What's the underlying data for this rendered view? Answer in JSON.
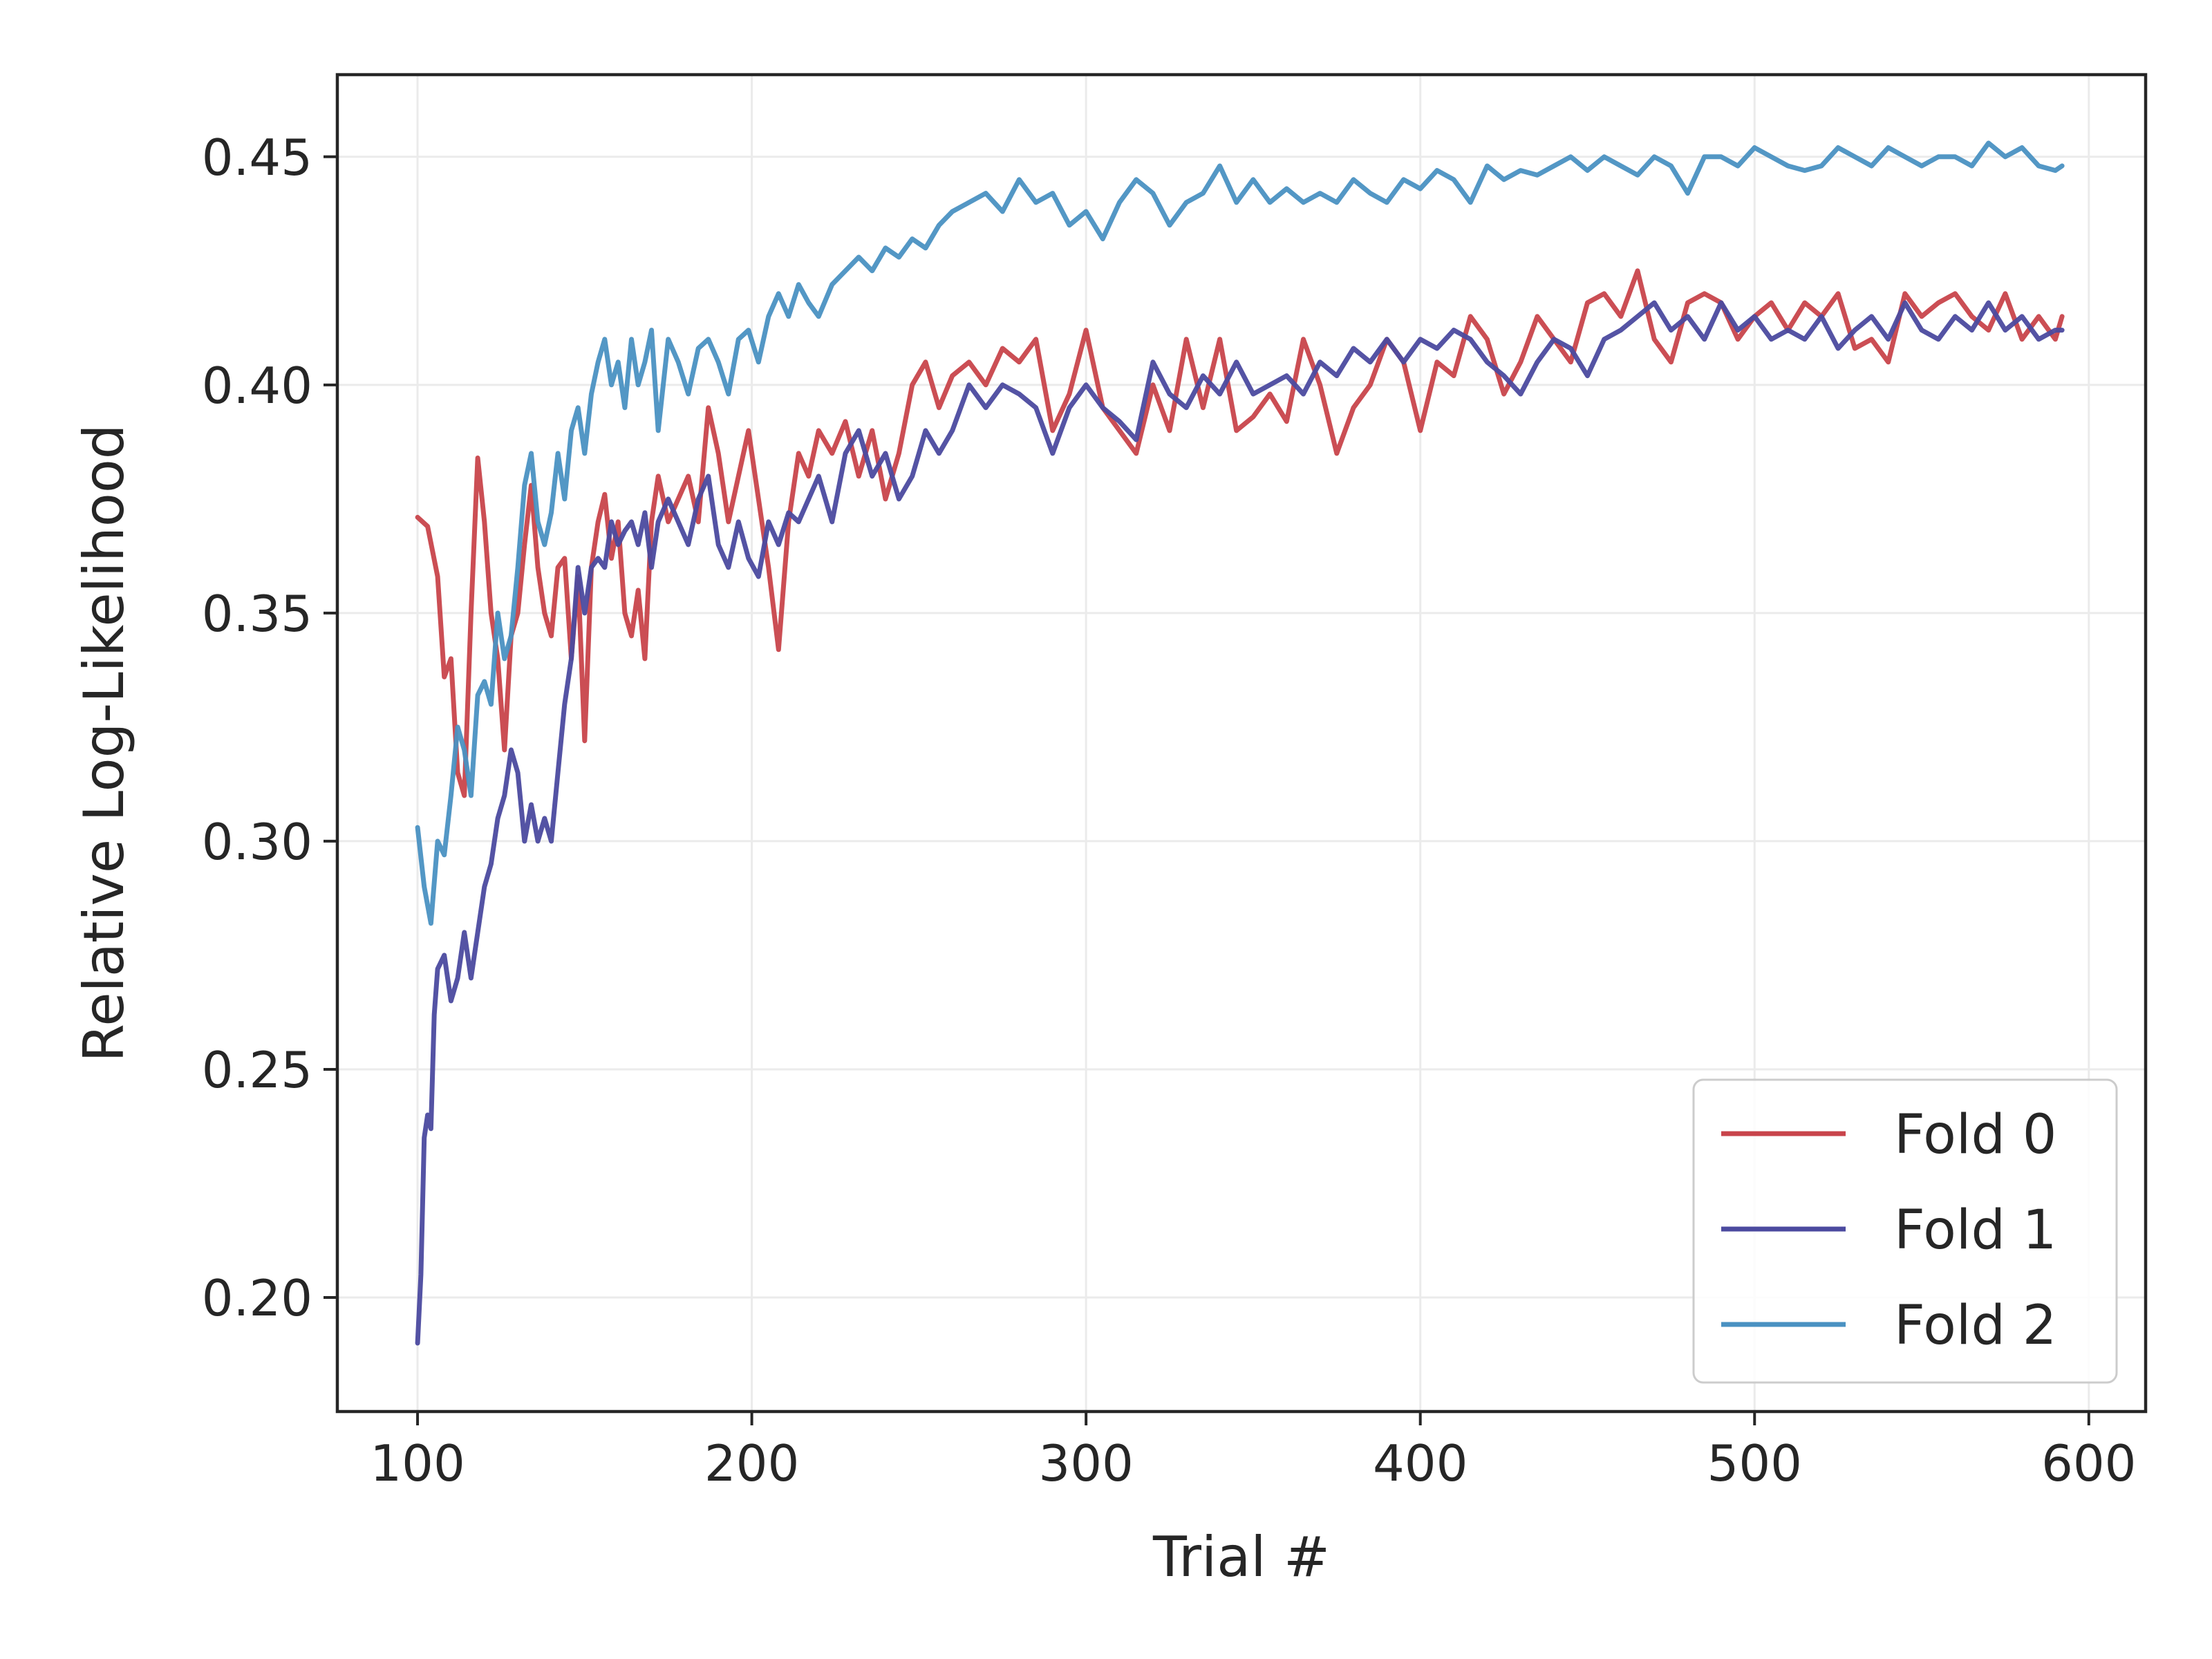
{
  "chart_data": {
    "type": "line",
    "title": "",
    "xlabel": "Trial #",
    "ylabel": "Relative Log-Likelihood",
    "xlim": [
      76,
      617
    ],
    "ylim": [
      0.175,
      0.468
    ],
    "xticks": [
      "100",
      "200",
      "300",
      "400",
      "500",
      "600"
    ],
    "xtick_values": [
      100,
      200,
      300,
      400,
      500,
      600
    ],
    "yticks": [
      "0.20",
      "0.25",
      "0.30",
      "0.35",
      "0.40",
      "0.45"
    ],
    "ytick_values": [
      0.2,
      0.25,
      0.3,
      0.35,
      0.4,
      0.45
    ],
    "grid": true,
    "legend_position": "lower-right",
    "series": [
      {
        "name": "Fold 0",
        "color": "#c8444b",
        "x": [
          100,
          103,
          106,
          108,
          110,
          112,
          114,
          116,
          118,
          120,
          122,
          124,
          126,
          128,
          130,
          132,
          134,
          136,
          138,
          140,
          142,
          144,
          146,
          148,
          150,
          152,
          154,
          156,
          158,
          160,
          162,
          164,
          166,
          168,
          170,
          172,
          175,
          178,
          181,
          184,
          187,
          190,
          193,
          196,
          199,
          202,
          205,
          208,
          211,
          214,
          217,
          220,
          224,
          228,
          232,
          236,
          240,
          244,
          248,
          252,
          256,
          260,
          265,
          270,
          275,
          280,
          285,
          290,
          295,
          300,
          305,
          310,
          315,
          320,
          325,
          330,
          335,
          340,
          345,
          350,
          355,
          360,
          365,
          370,
          375,
          380,
          385,
          390,
          395,
          400,
          405,
          410,
          415,
          420,
          425,
          430,
          435,
          440,
          445,
          450,
          455,
          460,
          465,
          470,
          475,
          480,
          485,
          490,
          495,
          500,
          505,
          510,
          515,
          520,
          525,
          530,
          535,
          540,
          545,
          550,
          555,
          560,
          565,
          570,
          575,
          580,
          585,
          590,
          592
        ],
        "y": [
          0.371,
          0.369,
          0.358,
          0.336,
          0.34,
          0.315,
          0.31,
          0.35,
          0.384,
          0.37,
          0.35,
          0.34,
          0.32,
          0.345,
          0.35,
          0.365,
          0.378,
          0.36,
          0.35,
          0.345,
          0.36,
          0.362,
          0.34,
          0.358,
          0.322,
          0.36,
          0.37,
          0.376,
          0.362,
          0.37,
          0.35,
          0.345,
          0.355,
          0.34,
          0.37,
          0.38,
          0.37,
          0.375,
          0.38,
          0.37,
          0.395,
          0.385,
          0.37,
          0.38,
          0.39,
          0.375,
          0.36,
          0.342,
          0.37,
          0.385,
          0.38,
          0.39,
          0.385,
          0.392,
          0.38,
          0.39,
          0.375,
          0.385,
          0.4,
          0.405,
          0.395,
          0.402,
          0.405,
          0.4,
          0.408,
          0.405,
          0.41,
          0.39,
          0.398,
          0.412,
          0.395,
          0.39,
          0.385,
          0.4,
          0.39,
          0.41,
          0.395,
          0.41,
          0.39,
          0.393,
          0.398,
          0.392,
          0.41,
          0.4,
          0.385,
          0.395,
          0.4,
          0.41,
          0.405,
          0.39,
          0.405,
          0.402,
          0.415,
          0.41,
          0.398,
          0.405,
          0.415,
          0.41,
          0.405,
          0.418,
          0.42,
          0.415,
          0.425,
          0.41,
          0.405,
          0.418,
          0.42,
          0.418,
          0.41,
          0.415,
          0.418,
          0.412,
          0.418,
          0.415,
          0.42,
          0.408,
          0.41,
          0.405,
          0.42,
          0.415,
          0.418,
          0.42,
          0.415,
          0.412,
          0.42,
          0.41,
          0.415,
          0.41,
          0.415
        ]
      },
      {
        "name": "Fold 1",
        "color": "#4b4a9f",
        "x": [
          100,
          101,
          102,
          103,
          104,
          105,
          106,
          108,
          110,
          112,
          114,
          116,
          118,
          120,
          122,
          124,
          126,
          128,
          130,
          132,
          134,
          136,
          138,
          140,
          142,
          144,
          146,
          148,
          150,
          152,
          154,
          156,
          158,
          160,
          162,
          164,
          166,
          168,
          170,
          172,
          175,
          178,
          181,
          184,
          187,
          190,
          193,
          196,
          199,
          202,
          205,
          208,
          211,
          214,
          217,
          220,
          224,
          228,
          232,
          236,
          240,
          244,
          248,
          252,
          256,
          260,
          265,
          270,
          275,
          280,
          285,
          290,
          295,
          300,
          305,
          310,
          315,
          320,
          325,
          330,
          335,
          340,
          345,
          350,
          355,
          360,
          365,
          370,
          375,
          380,
          385,
          390,
          395,
          400,
          405,
          410,
          415,
          420,
          425,
          430,
          435,
          440,
          445,
          450,
          455,
          460,
          465,
          470,
          475,
          480,
          485,
          490,
          495,
          500,
          505,
          510,
          515,
          520,
          525,
          530,
          535,
          540,
          545,
          550,
          555,
          560,
          565,
          570,
          575,
          580,
          585,
          590,
          592
        ],
        "y": [
          0.19,
          0.205,
          0.235,
          0.24,
          0.237,
          0.262,
          0.272,
          0.275,
          0.265,
          0.27,
          0.28,
          0.27,
          0.28,
          0.29,
          0.295,
          0.305,
          0.31,
          0.32,
          0.315,
          0.3,
          0.308,
          0.3,
          0.305,
          0.3,
          0.315,
          0.33,
          0.34,
          0.36,
          0.35,
          0.36,
          0.362,
          0.36,
          0.37,
          0.365,
          0.368,
          0.37,
          0.365,
          0.372,
          0.36,
          0.37,
          0.375,
          0.37,
          0.365,
          0.375,
          0.38,
          0.365,
          0.36,
          0.37,
          0.362,
          0.358,
          0.37,
          0.365,
          0.372,
          0.37,
          0.375,
          0.38,
          0.37,
          0.385,
          0.39,
          0.38,
          0.385,
          0.375,
          0.38,
          0.39,
          0.385,
          0.39,
          0.4,
          0.395,
          0.4,
          0.398,
          0.395,
          0.385,
          0.395,
          0.4,
          0.395,
          0.392,
          0.388,
          0.405,
          0.398,
          0.395,
          0.402,
          0.398,
          0.405,
          0.398,
          0.4,
          0.402,
          0.398,
          0.405,
          0.402,
          0.408,
          0.405,
          0.41,
          0.405,
          0.41,
          0.408,
          0.412,
          0.41,
          0.405,
          0.402,
          0.398,
          0.405,
          0.41,
          0.408,
          0.402,
          0.41,
          0.412,
          0.415,
          0.418,
          0.412,
          0.415,
          0.41,
          0.418,
          0.412,
          0.415,
          0.41,
          0.412,
          0.41,
          0.415,
          0.408,
          0.412,
          0.415,
          0.41,
          0.418,
          0.412,
          0.41,
          0.415,
          0.412,
          0.418,
          0.412,
          0.415,
          0.41,
          0.412,
          0.412
        ]
      },
      {
        "name": "Fold 2",
        "color": "#4a91c2",
        "x": [
          100,
          102,
          104,
          106,
          108,
          110,
          112,
          114,
          116,
          118,
          120,
          122,
          124,
          126,
          128,
          130,
          132,
          134,
          136,
          138,
          140,
          142,
          144,
          146,
          148,
          150,
          152,
          154,
          156,
          158,
          160,
          162,
          164,
          166,
          168,
          170,
          172,
          175,
          178,
          181,
          184,
          187,
          190,
          193,
          196,
          199,
          202,
          205,
          208,
          211,
          214,
          217,
          220,
          224,
          228,
          232,
          236,
          240,
          244,
          248,
          252,
          256,
          260,
          265,
          270,
          275,
          280,
          285,
          290,
          295,
          300,
          305,
          310,
          315,
          320,
          325,
          330,
          335,
          340,
          345,
          350,
          355,
          360,
          365,
          370,
          375,
          380,
          385,
          390,
          395,
          400,
          405,
          410,
          415,
          420,
          425,
          430,
          435,
          440,
          445,
          450,
          455,
          460,
          465,
          470,
          475,
          480,
          485,
          490,
          495,
          500,
          505,
          510,
          515,
          520,
          525,
          530,
          535,
          540,
          545,
          550,
          555,
          560,
          565,
          570,
          575,
          580,
          585,
          590,
          592
        ],
        "y": [
          0.303,
          0.29,
          0.282,
          0.3,
          0.297,
          0.31,
          0.325,
          0.32,
          0.31,
          0.332,
          0.335,
          0.33,
          0.35,
          0.34,
          0.345,
          0.36,
          0.378,
          0.385,
          0.37,
          0.365,
          0.372,
          0.385,
          0.375,
          0.39,
          0.395,
          0.385,
          0.398,
          0.405,
          0.41,
          0.4,
          0.405,
          0.395,
          0.41,
          0.4,
          0.405,
          0.412,
          0.39,
          0.41,
          0.405,
          0.398,
          0.408,
          0.41,
          0.405,
          0.398,
          0.41,
          0.412,
          0.405,
          0.415,
          0.42,
          0.415,
          0.422,
          0.418,
          0.415,
          0.422,
          0.425,
          0.428,
          0.425,
          0.43,
          0.428,
          0.432,
          0.43,
          0.435,
          0.438,
          0.44,
          0.442,
          0.438,
          0.445,
          0.44,
          0.442,
          0.435,
          0.438,
          0.432,
          0.44,
          0.445,
          0.442,
          0.435,
          0.44,
          0.442,
          0.448,
          0.44,
          0.445,
          0.44,
          0.443,
          0.44,
          0.442,
          0.44,
          0.445,
          0.442,
          0.44,
          0.445,
          0.443,
          0.447,
          0.445,
          0.44,
          0.448,
          0.445,
          0.447,
          0.446,
          0.448,
          0.45,
          0.447,
          0.45,
          0.448,
          0.446,
          0.45,
          0.448,
          0.442,
          0.45,
          0.45,
          0.448,
          0.452,
          0.45,
          0.448,
          0.447,
          0.448,
          0.452,
          0.45,
          0.448,
          0.452,
          0.45,
          0.448,
          0.45,
          0.45,
          0.448,
          0.453,
          0.45,
          0.452,
          0.448,
          0.447,
          0.448
        ]
      }
    ]
  }
}
